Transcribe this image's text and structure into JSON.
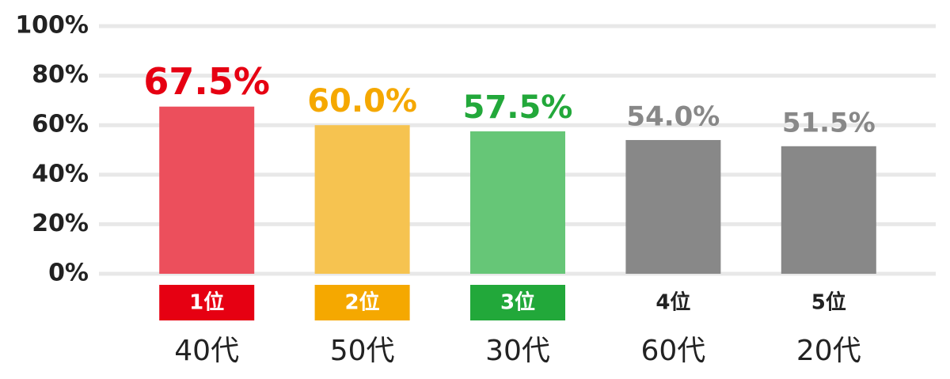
{
  "chart_data": {
    "type": "bar",
    "categories": [
      "40代",
      "50代",
      "30代",
      "60代",
      "20代"
    ],
    "values": [
      67.5,
      60.0,
      57.5,
      54.0,
      51.5
    ],
    "value_labels": [
      "67.5%",
      "60.0%",
      "57.5%",
      "54.0%",
      "51.5%"
    ],
    "bar_colors": [
      "#ec4f5c",
      "#f6c350",
      "#66c677",
      "#888888",
      "#888888"
    ],
    "label_colors": [
      "#e60012",
      "#f5a800",
      "#22a83a",
      "#888888",
      "#888888"
    ],
    "ranks": [
      "1位",
      "2位",
      "3位",
      "4位",
      "5位"
    ],
    "rank_colors": [
      "#e60012",
      "#f5a800",
      "#22a83a",
      null,
      null
    ],
    "ylim": [
      0,
      100
    ],
    "yticks": [
      {
        "value": 0,
        "label": "0%"
      },
      {
        "value": 20,
        "label": "20%"
      },
      {
        "value": 40,
        "label": "40%"
      },
      {
        "value": 60,
        "label": "60%"
      },
      {
        "value": 80,
        "label": "80%"
      },
      {
        "value": 100,
        "label": "100%"
      }
    ],
    "grid": true
  }
}
